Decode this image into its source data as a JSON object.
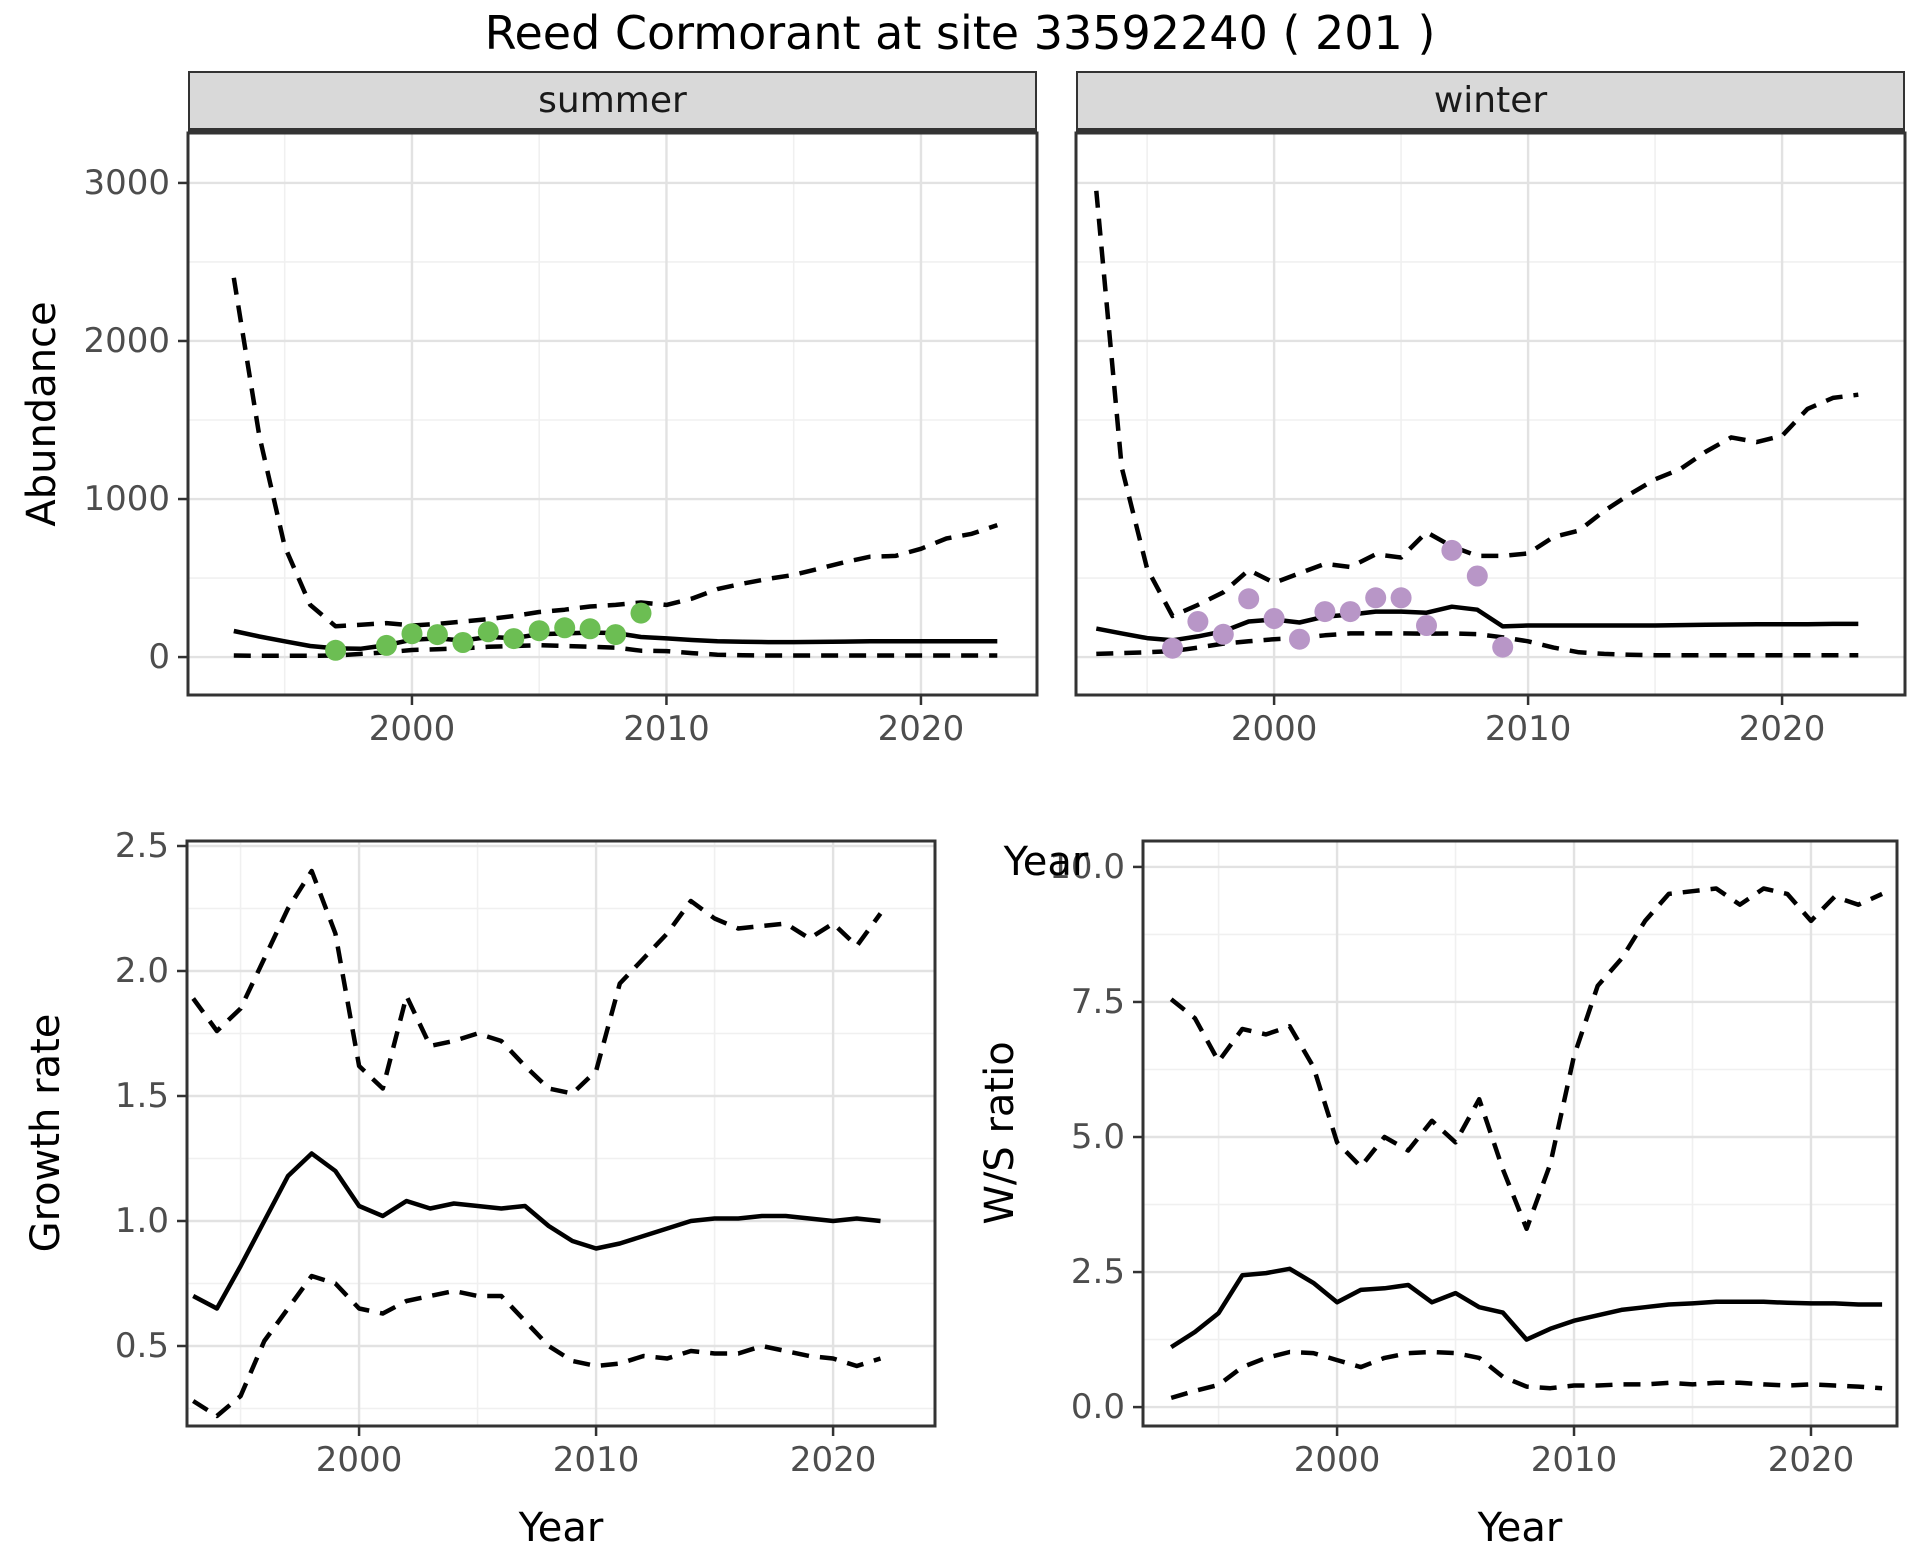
{
  "title": "Reed Cormorant at site 33592240 ( 201 )",
  "facets": {
    "summer": "summer",
    "winter": "winter"
  },
  "axis_titles": {
    "abundance": "Abundance",
    "year": "Year",
    "growth_rate": "Growth rate",
    "ws_ratio": "W/S ratio"
  },
  "colors": {
    "observed_summer": "#6CBE53",
    "observed_winter": "#B896C7",
    "median_line": "#000000",
    "ci_line": "#000000",
    "strip_bg": "#D9D9D9",
    "panel_border": "#333333",
    "grid_major": "#E2E2E2",
    "grid_minor": "#F0F0F0",
    "tick_label": "#4D4D4D"
  },
  "chart_data": [
    {
      "id": "abundance-summer",
      "type": "line",
      "facet": "summer",
      "xlabel": "Year",
      "ylabel": "Abundance",
      "xlim": [
        1991.2,
        2024.56
      ],
      "ylim": [
        -240,
        3316
      ],
      "xticks": [
        2000,
        2010,
        2020
      ],
      "xtick_labels": [
        "2000",
        "2010",
        "2020"
      ],
      "yticks": [
        0,
        1000,
        2000,
        3000
      ],
      "ytick_labels": [
        "0",
        "1000",
        "2000",
        "3000"
      ],
      "show_y_tick_labels": true,
      "years": [
        1993,
        1994,
        1995,
        1996,
        1997,
        1998,
        1999,
        2000,
        2001,
        2002,
        2003,
        2004,
        2005,
        2006,
        2007,
        2008,
        2009,
        2010,
        2011,
        2012,
        2013,
        2014,
        2015,
        2016,
        2017,
        2018,
        2019,
        2020,
        2021,
        2022,
        2023
      ],
      "series": [
        {
          "name": "median",
          "style": "solid",
          "values": [
            165,
            130,
            100,
            70,
            55,
            53,
            75,
            110,
            118,
            105,
            127,
            120,
            145,
            150,
            155,
            152,
            127,
            118,
            108,
            100,
            97,
            95,
            95,
            96,
            98,
            100,
            100,
            100,
            100,
            100,
            100
          ]
        },
        {
          "name": "lower_ci",
          "style": "dashed",
          "values": [
            10,
            8,
            8,
            8,
            10,
            20,
            30,
            45,
            50,
            55,
            65,
            70,
            75,
            70,
            65,
            60,
            40,
            38,
            25,
            15,
            12,
            10,
            10,
            10,
            10,
            10,
            10,
            10,
            10,
            10,
            10
          ]
        },
        {
          "name": "upper_ci",
          "style": "dashed",
          "values": [
            2400,
            1400,
            700,
            330,
            195,
            205,
            215,
            200,
            210,
            225,
            240,
            260,
            285,
            300,
            320,
            330,
            345,
            330,
            370,
            430,
            465,
            495,
            520,
            560,
            600,
            635,
            640,
            685,
            750,
            780,
            835
          ]
        }
      ],
      "observed_points": {
        "color_key": "observed_summer",
        "years": [
          1997,
          1999,
          2000,
          2001,
          2002,
          2003,
          2004,
          2005,
          2006,
          2007,
          2008,
          2009
        ],
        "values": [
          43,
          74,
          148,
          142,
          92,
          160,
          117,
          167,
          185,
          179,
          142,
          278
        ]
      }
    },
    {
      "id": "abundance-winter",
      "type": "line",
      "facet": "winter",
      "xlabel": "Year",
      "ylabel": "Abundance",
      "xlim": [
        1992.2,
        2024.84
      ],
      "ylim": [
        -240,
        3316
      ],
      "xticks": [
        2000,
        2010,
        2020
      ],
      "xtick_labels": [
        "2000",
        "2010",
        "2020"
      ],
      "yticks": [
        0,
        1000,
        2000,
        3000
      ],
      "ytick_labels": [
        "0",
        "1000",
        "2000",
        "3000"
      ],
      "show_y_tick_labels": false,
      "years": [
        1993,
        1994,
        1995,
        1996,
        1997,
        1998,
        1999,
        2000,
        2001,
        2002,
        2003,
        2004,
        2005,
        2006,
        2007,
        2008,
        2009,
        2010,
        2011,
        2012,
        2013,
        2014,
        2015,
        2016,
        2017,
        2018,
        2019,
        2020,
        2021,
        2022,
        2023
      ],
      "series": [
        {
          "name": "median",
          "style": "solid",
          "values": [
            180,
            150,
            120,
            106,
            131,
            163,
            225,
            238,
            219,
            256,
            269,
            288,
            288,
            281,
            319,
            300,
            194,
            200,
            200,
            200,
            200,
            200,
            200,
            202,
            204,
            206,
            208,
            208,
            208,
            210,
            210
          ]
        },
        {
          "name": "lower_ci",
          "style": "dashed",
          "values": [
            20,
            25,
            30,
            38,
            60,
            85,
            100,
            113,
            120,
            138,
            150,
            150,
            150,
            148,
            150,
            145,
            125,
            100,
            60,
            30,
            20,
            15,
            12,
            12,
            12,
            12,
            12,
            12,
            12,
            12,
            12
          ]
        },
        {
          "name": "upper_ci",
          "style": "dashed",
          "values": [
            2950,
            1200,
            560,
            260,
            330,
            410,
            550,
            470,
            530,
            590,
            570,
            650,
            630,
            790,
            700,
            640,
            640,
            656,
            760,
            800,
            925,
            1030,
            1125,
            1190,
            1300,
            1390,
            1360,
            1400,
            1570,
            1640,
            1660
          ]
        }
      ],
      "observed_points": {
        "color_key": "observed_winter",
        "years": [
          1996,
          1997,
          1998,
          1999,
          2000,
          2001,
          2002,
          2003,
          2004,
          2005,
          2006,
          2007,
          2008,
          2009
        ],
        "values": [
          56,
          225,
          144,
          369,
          244,
          113,
          288,
          288,
          375,
          375,
          200,
          675,
          513,
          63
        ]
      }
    },
    {
      "id": "growth-rate",
      "type": "line",
      "facet": null,
      "xlabel": "Year",
      "ylabel": "Growth rate",
      "xlim": [
        1992.74,
        2024.3
      ],
      "ylim": [
        0.18,
        2.52
      ],
      "xticks": [
        2000,
        2010,
        2020
      ],
      "xtick_labels": [
        "2000",
        "2010",
        "2020"
      ],
      "yticks": [
        0.5,
        1.0,
        1.5,
        2.0,
        2.5
      ],
      "ytick_labels": [
        "0.5",
        "1.0",
        "1.5",
        "2.0",
        "2.5"
      ],
      "show_y_tick_labels": true,
      "years": [
        1993,
        1994,
        1995,
        1996,
        1997,
        1998,
        1999,
        2000,
        2001,
        2002,
        2003,
        2004,
        2005,
        2006,
        2007,
        2008,
        2009,
        2010,
        2011,
        2012,
        2013,
        2014,
        2015,
        2016,
        2017,
        2018,
        2019,
        2020,
        2021,
        2022
      ],
      "series": [
        {
          "name": "median",
          "style": "solid",
          "values": [
            0.7,
            0.65,
            0.82,
            1.0,
            1.18,
            1.27,
            1.2,
            1.06,
            1.02,
            1.08,
            1.05,
            1.07,
            1.06,
            1.05,
            1.06,
            0.98,
            0.92,
            0.89,
            0.91,
            0.94,
            0.97,
            1.0,
            1.01,
            1.01,
            1.02,
            1.02,
            1.01,
            1.0,
            1.01,
            1.0
          ]
        },
        {
          "name": "lower_ci",
          "style": "dashed",
          "values": [
            0.28,
            0.22,
            0.3,
            0.52,
            0.65,
            0.78,
            0.75,
            0.65,
            0.63,
            0.68,
            0.7,
            0.72,
            0.7,
            0.7,
            0.6,
            0.5,
            0.44,
            0.42,
            0.43,
            0.46,
            0.45,
            0.48,
            0.47,
            0.47,
            0.5,
            0.48,
            0.46,
            0.45,
            0.42,
            0.45
          ]
        },
        {
          "name": "upper_ci",
          "style": "dashed",
          "values": [
            1.89,
            1.76,
            1.85,
            2.05,
            2.25,
            2.4,
            2.15,
            1.62,
            1.53,
            1.9,
            1.7,
            1.72,
            1.75,
            1.72,
            1.62,
            1.53,
            1.51,
            1.6,
            1.95,
            2.05,
            2.15,
            2.28,
            2.21,
            2.17,
            2.18,
            2.19,
            2.13,
            2.19,
            2.1,
            2.23
          ]
        }
      ],
      "observed_points": null
    },
    {
      "id": "ws-ratio",
      "type": "line",
      "facet": null,
      "xlabel": "Year",
      "ylabel": "W/S ratio",
      "xlim": [
        1991.81,
        2023.63
      ],
      "ylim": [
        -0.35,
        10.48
      ],
      "xticks": [
        2000,
        2010,
        2020
      ],
      "xtick_labels": [
        "2000",
        "2010",
        "2020"
      ],
      "yticks": [
        0.0,
        2.5,
        5.0,
        7.5,
        10.0
      ],
      "ytick_labels": [
        "0.0",
        "2.5",
        "5.0",
        "7.5",
        "10.0"
      ],
      "show_y_tick_labels": true,
      "years": [
        1993,
        1994,
        1995,
        1996,
        1997,
        1998,
        1999,
        2000,
        2001,
        2002,
        2003,
        2004,
        2005,
        2006,
        2007,
        2008,
        2009,
        2010,
        2011,
        2012,
        2013,
        2014,
        2015,
        2016,
        2017,
        2018,
        2019,
        2020,
        2021,
        2022,
        2023
      ],
      "series": [
        {
          "name": "median",
          "style": "solid",
          "values": [
            1.11,
            1.39,
            1.74,
            2.44,
            2.48,
            2.56,
            2.3,
            1.94,
            2.17,
            2.2,
            2.26,
            1.94,
            2.11,
            1.85,
            1.75,
            1.25,
            1.45,
            1.6,
            1.7,
            1.8,
            1.85,
            1.9,
            1.92,
            1.95,
            1.95,
            1.95,
            1.93,
            1.92,
            1.92,
            1.9,
            1.9
          ]
        },
        {
          "name": "lower_ci",
          "style": "dashed",
          "values": [
            0.17,
            0.3,
            0.41,
            0.74,
            0.91,
            1.02,
            1.0,
            0.87,
            0.74,
            0.91,
            1.0,
            1.02,
            1.0,
            0.91,
            0.56,
            0.38,
            0.35,
            0.4,
            0.4,
            0.42,
            0.42,
            0.45,
            0.42,
            0.45,
            0.45,
            0.42,
            0.4,
            0.42,
            0.4,
            0.38,
            0.35
          ]
        },
        {
          "name": "upper_ci",
          "style": "dashed",
          "values": [
            7.55,
            7.2,
            6.4,
            7.0,
            6.9,
            7.05,
            6.3,
            4.9,
            4.45,
            5.0,
            4.75,
            5.3,
            4.9,
            5.7,
            4.4,
            3.3,
            4.5,
            6.5,
            7.8,
            8.3,
            9.0,
            9.5,
            9.55,
            9.6,
            9.3,
            9.6,
            9.5,
            9.0,
            9.45,
            9.3,
            9.5
          ]
        }
      ],
      "observed_points": null
    }
  ]
}
